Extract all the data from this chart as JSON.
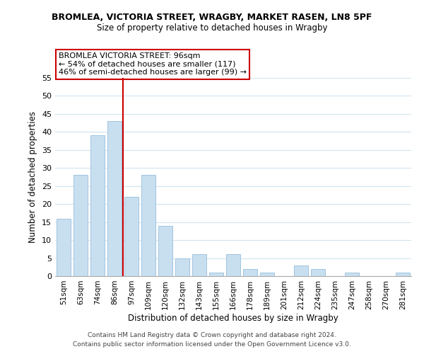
{
  "title1": "BROMLEA, VICTORIA STREET, WRAGBY, MARKET RASEN, LN8 5PF",
  "title2": "Size of property relative to detached houses in Wragby",
  "xlabel": "Distribution of detached houses by size in Wragby",
  "ylabel": "Number of detached properties",
  "bar_color": "#c8dff0",
  "bar_edge_color": "#a0c4e0",
  "categories": [
    "51sqm",
    "63sqm",
    "74sqm",
    "86sqm",
    "97sqm",
    "109sqm",
    "120sqm",
    "132sqm",
    "143sqm",
    "155sqm",
    "166sqm",
    "178sqm",
    "189sqm",
    "201sqm",
    "212sqm",
    "224sqm",
    "235sqm",
    "247sqm",
    "258sqm",
    "270sqm",
    "281sqm"
  ],
  "values": [
    16,
    28,
    39,
    43,
    22,
    28,
    14,
    5,
    6,
    1,
    6,
    2,
    1,
    0,
    3,
    2,
    0,
    1,
    0,
    0,
    1
  ],
  "ylim": [
    0,
    55
  ],
  "yticks": [
    0,
    5,
    10,
    15,
    20,
    25,
    30,
    35,
    40,
    45,
    50,
    55
  ],
  "vline_color": "#cc0000",
  "annotation_line1": "BROMLEA VICTORIA STREET: 96sqm",
  "annotation_line2": "← 54% of detached houses are smaller (117)",
  "annotation_line3": "46% of semi-detached houses are larger (99) →",
  "annotation_box_color": "#ffffff",
  "annotation_box_edge": "#cc0000",
  "footer1": "Contains HM Land Registry data © Crown copyright and database right 2024.",
  "footer2": "Contains public sector information licensed under the Open Government Licence v3.0.",
  "background_color": "#ffffff",
  "grid_color": "#d0e4f0"
}
